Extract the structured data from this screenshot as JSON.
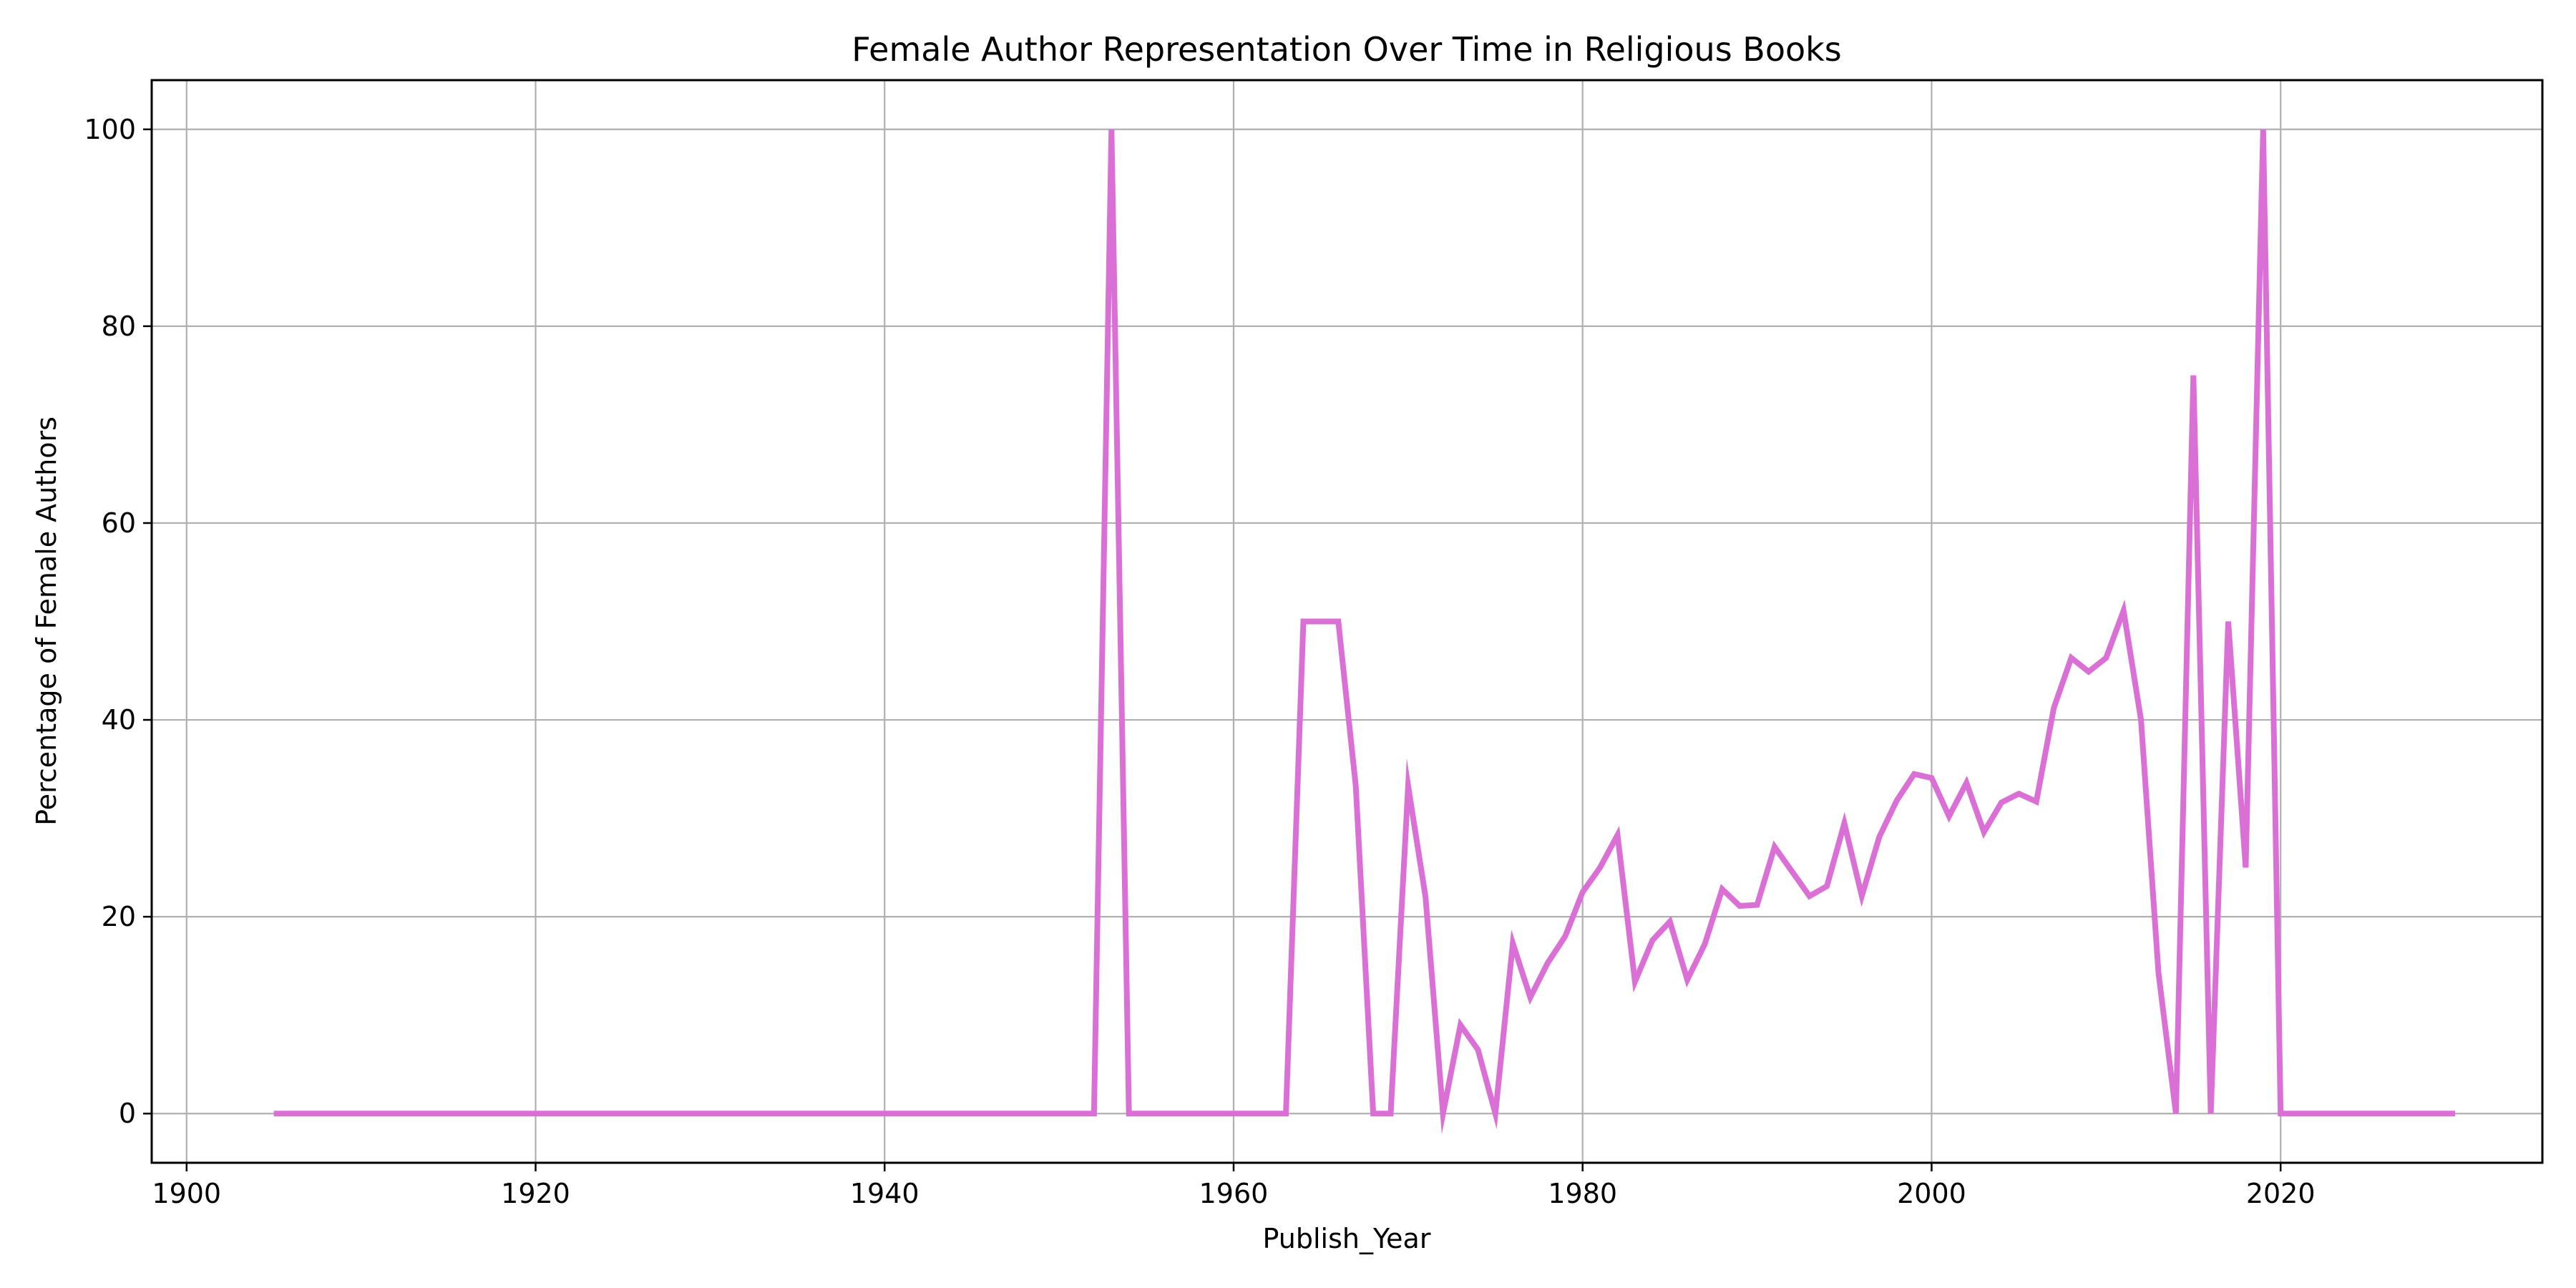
{
  "chart_data": {
    "type": "line",
    "title": "Female Author Representation Over Time in Religious Books",
    "xlabel": "Publish_Year",
    "ylabel": "Percentage of Female Authors",
    "xlim": [
      1898,
      2035
    ],
    "ylim": [
      -5,
      105
    ],
    "xticks": [
      1900,
      1920,
      1940,
      1960,
      1980,
      2000,
      2020
    ],
    "yticks": [
      0,
      20,
      40,
      60,
      80,
      100
    ],
    "grid": true,
    "colors": {
      "line": "#da70d6",
      "grid": "#b0b0b0",
      "axes": "#000000"
    },
    "series": [
      {
        "x": [
          1905,
          1952,
          1953,
          1954,
          1963,
          1964,
          1965,
          1966,
          1967,
          1968,
          1969,
          1970,
          1971,
          1972,
          1973,
          1974,
          1975,
          1976,
          1977,
          1978,
          1979,
          1980,
          1981,
          1982,
          1983,
          1984,
          1985,
          1986,
          1987,
          1988,
          1989,
          1990,
          1991,
          1992,
          1993,
          1994,
          1995,
          1996,
          1997,
          1998,
          1999,
          2000,
          2001,
          2002,
          2003,
          2004,
          2005,
          2006,
          2007,
          2008,
          2009,
          2010,
          2011,
          2012,
          2013,
          2014,
          2015,
          2016,
          2017,
          2018,
          2019,
          2020,
          2030
        ],
        "values": [
          0,
          0,
          100,
          0,
          0,
          50,
          50,
          50,
          33.3,
          0,
          0,
          33.3,
          22,
          0,
          9,
          6.5,
          0,
          17.3,
          11.8,
          15.3,
          18,
          22.5,
          25,
          28.3,
          13.4,
          17.6,
          19.5,
          13.6,
          17.2,
          22.8,
          21.1,
          21.2,
          27.1,
          24.6,
          22.1,
          23.1,
          29.5,
          22.1,
          28.1,
          31.8,
          34.5,
          34.1,
          30.2,
          33.6,
          28.6,
          31.6,
          32.5,
          31.7,
          41.2,
          46.3,
          44.9,
          46.3,
          51.1,
          40,
          14.3,
          0,
          75,
          0,
          50,
          25,
          100,
          0,
          0
        ]
      }
    ]
  }
}
